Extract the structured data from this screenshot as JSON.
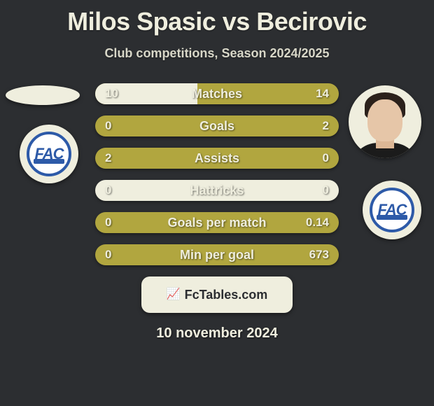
{
  "title": "Milos Spasic vs Becirovic",
  "subtitle": "Club competitions, Season 2024/2025",
  "colors": {
    "background": "#2c2e31",
    "row_base": "#b1a63f",
    "row_light": "#efeede",
    "text_light": "#efeede",
    "branding_bg": "#efeede",
    "branding_text": "#2c2e31",
    "badge_blue": "#2d5aa8"
  },
  "club_badges": {
    "left": {
      "text": "FAC"
    },
    "right": {
      "text": "FAC"
    }
  },
  "rows": [
    {
      "label": "Matches",
      "left": "10",
      "right": "14",
      "left_pct": 42,
      "right_pct": 0
    },
    {
      "label": "Goals",
      "left": "0",
      "right": "2",
      "left_pct": 0,
      "right_pct": 0
    },
    {
      "label": "Assists",
      "left": "2",
      "right": "0",
      "left_pct": 0,
      "right_pct": 0
    },
    {
      "label": "Hattricks",
      "left": "0",
      "right": "0",
      "left_pct": 0,
      "right_pct": 0,
      "all_light": true
    },
    {
      "label": "Goals per match",
      "left": "0",
      "right": "0.14",
      "left_pct": 0,
      "right_pct": 0
    },
    {
      "label": "Min per goal",
      "left": "0",
      "right": "673",
      "left_pct": 0,
      "right_pct": 0
    }
  ],
  "branding": "FcTables.com",
  "date": "10 november 2024"
}
